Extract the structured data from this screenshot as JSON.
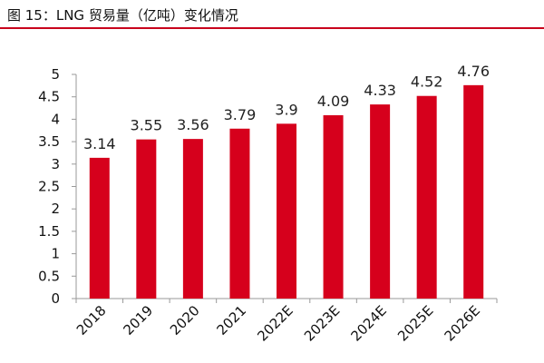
{
  "figure": {
    "title": "图 15：LNG 贸易量（亿吨）变化情况"
  },
  "colors": {
    "bar": "#d6001c",
    "rule": "#c8001c",
    "axis": "#999999"
  },
  "chart_data": {
    "type": "bar",
    "title": "图 15：LNG 贸易量（亿吨）变化情况",
    "xlabel": "",
    "ylabel": "",
    "categories": [
      "2018",
      "2019",
      "2020",
      "2021",
      "2022E",
      "2023E",
      "2024E",
      "2025E",
      "2026E"
    ],
    "values": [
      3.14,
      3.55,
      3.56,
      3.79,
      3.9,
      4.09,
      4.33,
      4.52,
      4.76
    ],
    "value_labels": [
      "3.14",
      "3.55",
      "3.56",
      "3.79",
      "3.9",
      "4.09",
      "4.33",
      "4.52",
      "4.76"
    ],
    "ylim": [
      0,
      5
    ],
    "yticks": [
      "0",
      "0.5",
      "1",
      "1.5",
      "2",
      "2.5",
      "3",
      "3.5",
      "4",
      "4.5",
      "5"
    ],
    "grid": false,
    "legend": "none"
  }
}
